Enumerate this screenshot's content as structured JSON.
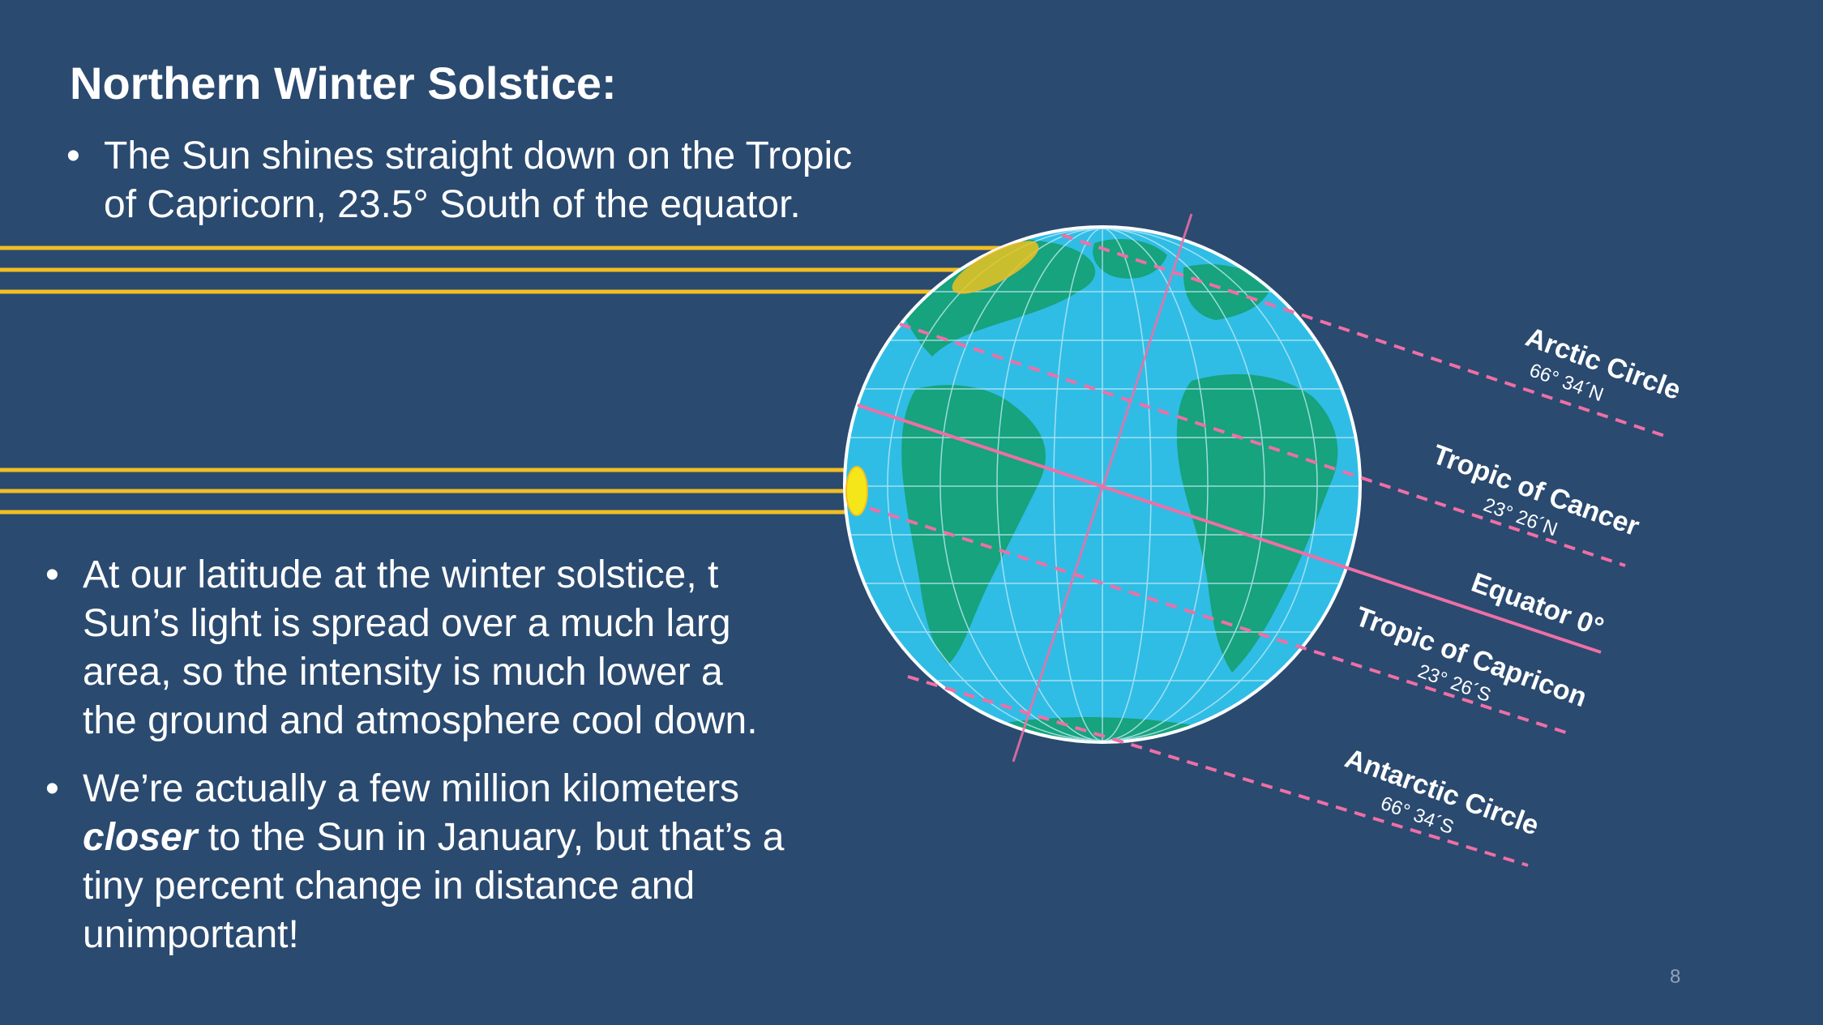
{
  "slide": {
    "title": "Northern Winter Solstice:",
    "bullet1": {
      "line1": "The Sun shines straight down on the Tropic",
      "line2": "of Capricorn, 23.5° South of the equator."
    },
    "bullet2": {
      "line1": "At our latitude at the winter solstice, t",
      "line2": "Sun’s light is spread over a much larg",
      "line3": "area, so the intensity is much lower a",
      "line4": "the ground and atmosphere cool down."
    },
    "bullet3": {
      "line1": "We’re actually a few million kilometers",
      "em": "closer",
      "line2_rest": " to the Sun in January, but that’s a",
      "line3": "tiny percent change in distance and",
      "line4": "unimportant!"
    },
    "page_number": "8"
  },
  "diagram": {
    "labels": {
      "arctic": {
        "name": "Arctic Circle",
        "coord": "66° 34´N"
      },
      "cancer": {
        "name": "Tropic of Cancer",
        "coord": "23° 26´N"
      },
      "equator": {
        "name": "Equator 0°"
      },
      "capricorn": {
        "name": "Tropic of Capricon",
        "coord": "23° 26´S"
      },
      "antarctic": {
        "name": "Antarctic Circle",
        "coord": "66° 34´S"
      }
    },
    "colors": {
      "background": "#2a4a70",
      "ocean": "#2fbde6",
      "land": "#16a37d",
      "sun_ray": "#f3be22",
      "latitude_line": "#ef6fa5",
      "spot": "#f5e61a"
    }
  }
}
